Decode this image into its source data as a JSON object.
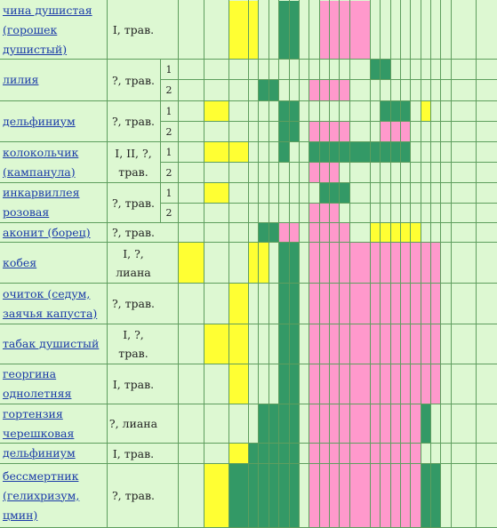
{
  "colors": {
    "background": "#ddf8d2",
    "grid": "#5e9e5e",
    "yellow": "#ffff33",
    "green": "#339966",
    "pink": "#ff99cc",
    "link": "#1a3aa8"
  },
  "plants": [
    {
      "name": "чина душистая (горошек душистый)",
      "type": "I, трав.",
      "subrows": []
    },
    {
      "name": "лилия",
      "type": "?, трав.",
      "subrows": [
        "1",
        "2"
      ]
    },
    {
      "name": "дельфиниум",
      "type": "?, трав.",
      "subrows": [
        "1",
        "2"
      ]
    },
    {
      "name": "колокольчик (кампанула)",
      "type": "I, II, ?, трав.",
      "subrows": [
        "1",
        "2"
      ]
    },
    {
      "name": "инкарвиллея розовая",
      "type": "?, трав.",
      "subrows": [
        "1",
        "2"
      ]
    },
    {
      "name": "аконит (борец)",
      "type": "?, трав.",
      "subrows": []
    },
    {
      "name": "кобея",
      "type": "I, ?, лиана",
      "subrows": []
    },
    {
      "name": "очиток (седум, заячья капуста)",
      "type": "?, трав.",
      "subrows": []
    },
    {
      "name": "табак душистый",
      "type": "I, ?, трав.",
      "subrows": []
    },
    {
      "name": "георгина однолетняя",
      "type": "I, трав.",
      "subrows": []
    },
    {
      "name": "гортензия черешковая",
      "type": "?, лиана",
      "subrows": []
    },
    {
      "name": "дельфиниум",
      "type": "I, трав.",
      "subrows": []
    },
    {
      "name": "бессмертник (гелихризум, цмин)",
      "type": "?, трав.",
      "subrows": []
    }
  ]
}
